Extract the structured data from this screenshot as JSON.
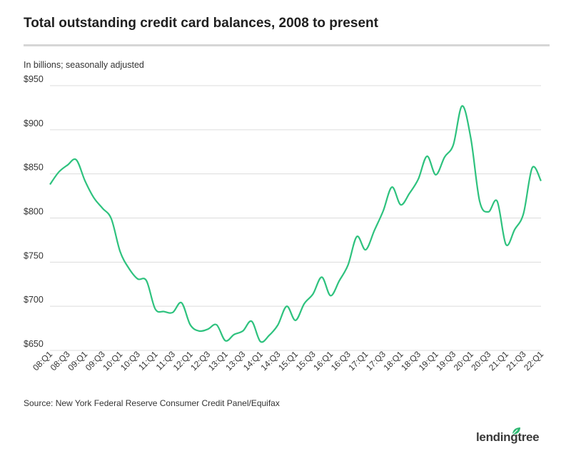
{
  "title": "Total outstanding credit card balances, 2008 to present",
  "subtitle": "In billions; seasonally adjusted",
  "source": "Source: New York Federal Reserve Consumer Credit Panel/Equifax",
  "brand": "lendingtree",
  "colors": {
    "line": "#2ec27e",
    "grid": "#dcdcdc",
    "leaf": "#2eb872"
  },
  "chart_data": {
    "type": "line",
    "title": "Total outstanding credit card balances, 2008 to present",
    "ylabel": "In billions; seasonally adjusted",
    "ylim": [
      650,
      950
    ],
    "yticks": [
      950,
      900,
      850,
      800,
      750,
      700,
      650
    ],
    "ytick_labels": [
      "$950",
      "$900",
      "$850",
      "$800",
      "$750",
      "$700",
      "$650"
    ],
    "xtick_labels": [
      "08:Q1",
      "08:Q3",
      "09:Q1",
      "09:Q3",
      "10:Q1",
      "10:Q3",
      "11:Q1",
      "11:Q3",
      "12:Q1",
      "12:Q3",
      "13:Q1",
      "13:Q3",
      "14:Q1",
      "14:Q3",
      "15:Q1",
      "15:Q3",
      "16:Q1",
      "16:Q3",
      "17:Q1",
      "17:Q3",
      "18:Q1",
      "18:Q3",
      "19:Q1",
      "19:Q3",
      "20:Q1",
      "20:Q3",
      "21:Q1",
      "21:Q3",
      "22:Q1"
    ],
    "grid": true,
    "legend": "none",
    "x": [
      "08:Q1",
      "08:Q2",
      "08:Q3",
      "08:Q4",
      "09:Q1",
      "09:Q2",
      "09:Q3",
      "09:Q4",
      "10:Q1",
      "10:Q2",
      "10:Q3",
      "10:Q4",
      "11:Q1",
      "11:Q2",
      "11:Q3",
      "11:Q4",
      "12:Q1",
      "12:Q2",
      "12:Q3",
      "12:Q4",
      "13:Q1",
      "13:Q2",
      "13:Q3",
      "13:Q4",
      "14:Q1",
      "14:Q2",
      "14:Q3",
      "14:Q4",
      "15:Q1",
      "15:Q2",
      "15:Q3",
      "15:Q4",
      "16:Q1",
      "16:Q2",
      "16:Q3",
      "16:Q4",
      "17:Q1",
      "17:Q2",
      "17:Q3",
      "17:Q4",
      "18:Q1",
      "18:Q2",
      "18:Q3",
      "18:Q4",
      "19:Q1",
      "19:Q2",
      "19:Q3",
      "19:Q4",
      "20:Q1",
      "20:Q2",
      "20:Q3",
      "20:Q4",
      "21:Q1",
      "21:Q2",
      "21:Q3",
      "21:Q4",
      "22:Q1"
    ],
    "series": [
      {
        "values": [
          838,
          852,
          860,
          866,
          842,
          823,
          811,
          799,
          762,
          743,
          731,
          729,
          697,
          694,
          693,
          704,
          679,
          672,
          674,
          679,
          661,
          668,
          672,
          683,
          660,
          667,
          679,
          700,
          684,
          703,
          714,
          733,
          712,
          729,
          747,
          779,
          764,
          786,
          808,
          835,
          815,
          828,
          844,
          870,
          849,
          869,
          883,
          927,
          890,
          819,
          807,
          819,
          770,
          787,
          805,
          857,
          842
        ]
      }
    ]
  }
}
